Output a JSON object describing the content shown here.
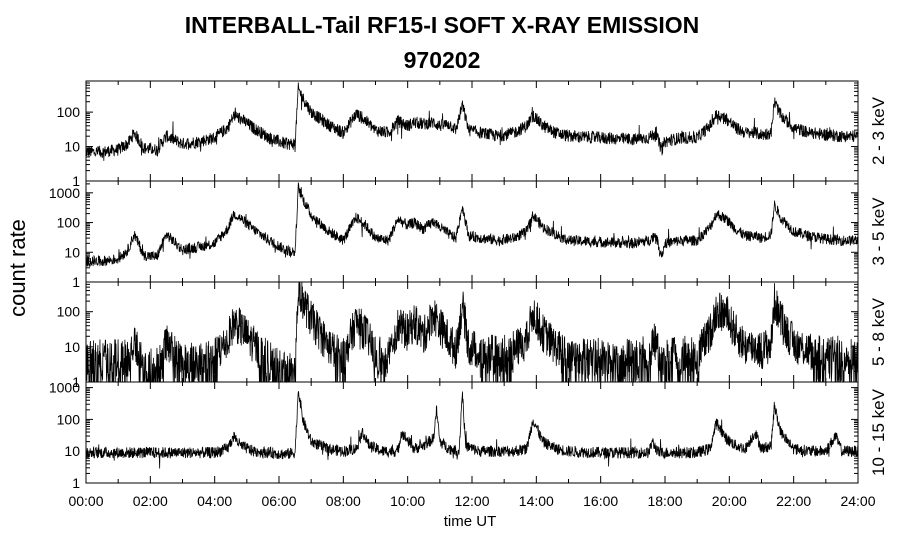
{
  "chart_data": {
    "type": "line",
    "title": "INTERBALL-Tail RF15-I SOFT X-RAY EMISSION",
    "subtitle": "970202",
    "ylabel": "count rate",
    "xlabel": "time UT",
    "x_ticks": [
      "00:00",
      "02:00",
      "04:00",
      "06:00",
      "08:00",
      "10:00",
      "12:00",
      "14:00",
      "16:00",
      "18:00",
      "20:00",
      "22:00",
      "24:00"
    ],
    "xlim": [
      0,
      24
    ],
    "y_scale": "log",
    "grid": false,
    "panels": [
      {
        "name": "2 - 3 keV",
        "ylim": [
          1,
          800
        ],
        "y_ticks": [
          "1",
          "10",
          "100"
        ],
        "series": {
          "x": [
            0,
            0.5,
            1.0,
            1.3,
            1.5,
            1.8,
            2.2,
            2.5,
            3.0,
            3.5,
            4.0,
            4.4,
            4.6,
            4.8,
            5.2,
            5.7,
            6.2,
            6.5,
            6.6,
            6.75,
            7.0,
            7.5,
            8.0,
            8.4,
            8.7,
            9.0,
            9.4,
            9.7,
            10.0,
            10.2,
            10.5,
            10.8,
            11.0,
            11.3,
            11.5,
            11.7,
            11.9,
            12.3,
            12.8,
            13.3,
            13.7,
            13.9,
            14.2,
            14.6,
            15.0,
            16.0,
            17.0,
            17.5,
            17.7,
            17.9,
            18.0,
            18.5,
            19.0,
            19.4,
            19.6,
            19.9,
            20.2,
            20.5,
            20.8,
            21.0,
            21.3,
            21.4,
            21.6,
            22.0,
            22.5,
            23.0,
            23.5,
            24.0
          ],
          "y": [
            7,
            7,
            8,
            12,
            25,
            9,
            8,
            20,
            12,
            14,
            18,
            35,
            80,
            65,
            35,
            18,
            12,
            12,
            480,
            250,
            100,
            45,
            25,
            90,
            55,
            30,
            25,
            55,
            40,
            50,
            45,
            50,
            40,
            45,
            30,
            160,
            30,
            25,
            20,
            25,
            40,
            80,
            40,
            25,
            20,
            18,
            16,
            18,
            25,
            8,
            14,
            18,
            18,
            40,
            85,
            65,
            35,
            25,
            25,
            22,
            25,
            200,
            80,
            35,
            25,
            22,
            20,
            20
          ]
        }
      },
      {
        "name": "3 - 5 keV",
        "ylim": [
          1,
          2500
        ],
        "y_ticks": [
          "1",
          "10",
          "100",
          "1000"
        ],
        "series": {
          "x": [
            0,
            0.5,
            1.0,
            1.3,
            1.5,
            1.8,
            2.2,
            2.5,
            3.0,
            3.5,
            4.0,
            4.4,
            4.6,
            4.8,
            5.2,
            5.7,
            6.2,
            6.5,
            6.6,
            6.75,
            7.0,
            7.5,
            8.0,
            8.4,
            8.7,
            9.0,
            9.4,
            9.7,
            10.0,
            10.2,
            10.5,
            10.8,
            11.0,
            11.3,
            11.5,
            11.7,
            11.9,
            12.3,
            12.8,
            13.3,
            13.7,
            13.9,
            14.2,
            14.6,
            15.0,
            16.0,
            17.0,
            17.5,
            17.7,
            17.9,
            18.0,
            18.5,
            19.0,
            19.4,
            19.6,
            19.9,
            20.2,
            20.5,
            20.8,
            21.0,
            21.3,
            21.4,
            21.6,
            22.0,
            22.5,
            23.0,
            23.5,
            24.0
          ],
          "y": [
            5,
            5,
            6,
            12,
            40,
            8,
            7,
            40,
            12,
            15,
            20,
            60,
            200,
            140,
            60,
            25,
            12,
            10,
            1500,
            600,
            180,
            55,
            25,
            150,
            80,
            30,
            25,
            130,
            80,
            100,
            60,
            110,
            70,
            40,
            30,
            350,
            35,
            30,
            25,
            30,
            50,
            180,
            70,
            40,
            25,
            22,
            20,
            25,
            40,
            8,
            20,
            25,
            25,
            70,
            200,
            130,
            60,
            35,
            35,
            30,
            40,
            400,
            150,
            50,
            35,
            28,
            25,
            25
          ]
        }
      },
      {
        "name": "5 - 8 keV",
        "ylim": [
          1,
          700
        ],
        "y_ticks": [
          "1",
          "10",
          "100"
        ],
        "series": {
          "x": [
            0,
            0.5,
            1.0,
            1.3,
            1.5,
            1.8,
            2.2,
            2.5,
            3.0,
            3.5,
            4.0,
            4.4,
            4.6,
            4.8,
            5.2,
            5.7,
            6.2,
            6.5,
            6.6,
            6.75,
            7.0,
            7.5,
            8.0,
            8.4,
            8.7,
            9.0,
            9.4,
            9.7,
            10.0,
            10.2,
            10.5,
            10.8,
            11.0,
            11.3,
            11.5,
            11.7,
            11.9,
            12.3,
            12.8,
            13.3,
            13.7,
            13.9,
            14.2,
            14.6,
            15.0,
            16.0,
            17.0,
            17.5,
            17.7,
            17.9,
            18.0,
            18.5,
            19.0,
            19.4,
            19.6,
            19.9,
            20.2,
            20.5,
            20.8,
            21.0,
            21.3,
            21.4,
            21.6,
            22.0,
            22.5,
            23.0,
            23.5,
            24.0
          ],
          "y": [
            5,
            5,
            5,
            5,
            14,
            3,
            3,
            12,
            4,
            4,
            5,
            15,
            50,
            35,
            12,
            4,
            2,
            3,
            450,
            200,
            60,
            12,
            5,
            50,
            25,
            6,
            5,
            40,
            25,
            50,
            20,
            90,
            40,
            15,
            8,
            150,
            10,
            7,
            6,
            8,
            15,
            100,
            25,
            10,
            6,
            5,
            5,
            6,
            15,
            3,
            5,
            6,
            6,
            25,
            110,
            80,
            25,
            10,
            10,
            8,
            12,
            200,
            60,
            12,
            8,
            6,
            6,
            6
          ]
        }
      },
      {
        "name": "10 - 15 keV",
        "ylim": [
          1,
          1500
        ],
        "y_ticks": [
          "1",
          "10",
          "100",
          "1000"
        ],
        "series": {
          "x": [
            0,
            0.5,
            1.0,
            1.5,
            2.0,
            2.5,
            3.0,
            3.5,
            4.0,
            4.4,
            4.6,
            4.8,
            5.2,
            5.7,
            6.2,
            6.5,
            6.6,
            6.75,
            7.0,
            7.5,
            8.0,
            8.4,
            8.6,
            8.8,
            9.2,
            9.7,
            9.8,
            10.2,
            10.5,
            10.8,
            10.9,
            11.0,
            11.3,
            11.6,
            11.7,
            11.8,
            12.2,
            12.8,
            13.3,
            13.7,
            13.9,
            14.2,
            14.6,
            15.0,
            16.0,
            17.0,
            17.5,
            17.6,
            17.8,
            18.5,
            19.0,
            19.4,
            19.6,
            19.9,
            20.2,
            20.5,
            20.8,
            21.0,
            21.3,
            21.4,
            21.6,
            22.0,
            22.5,
            23.0,
            23.3,
            23.5,
            24.0
          ],
          "y": [
            9,
            9,
            9,
            9,
            9,
            9,
            9,
            9,
            9,
            12,
            30,
            15,
            10,
            9,
            8,
            9,
            900,
            90,
            20,
            12,
            10,
            12,
            40,
            15,
            10,
            10,
            40,
            12,
            15,
            25,
            200,
            20,
            12,
            10,
            800,
            15,
            10,
            10,
            10,
            12,
            100,
            20,
            12,
            10,
            9,
            9,
            9,
            20,
            9,
            9,
            9,
            12,
            80,
            25,
            15,
            12,
            40,
            12,
            15,
            250,
            40,
            12,
            10,
            10,
            30,
            10,
            10
          ]
        }
      }
    ]
  }
}
